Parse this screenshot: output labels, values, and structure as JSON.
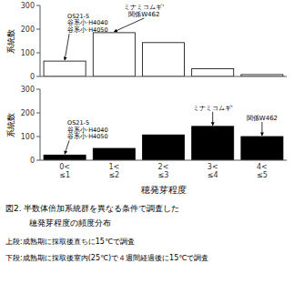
{
  "chart_data": [
    {
      "type": "bar",
      "categories": [
        null,
        null,
        null,
        null,
        null
      ],
      "values": [
        65,
        185,
        143,
        33,
        8
      ],
      "color": "white",
      "ylabel": "系統数",
      "ylim": [
        0,
        300
      ],
      "yticks": [
        0,
        100,
        200,
        300
      ],
      "grid": false,
      "tick_labels": "y",
      "annotations": [
        {
          "text": "ミナミコムギ'\n関係W462",
          "x": 1,
          "y": 185
        },
        {
          "text": "OS21-5\n谷系小·H4040\n谷系小·H4050",
          "x": 0,
          "y": 65
        }
      ]
    },
    {
      "type": "bar",
      "categories": [
        "0<\n≤1",
        "1<\n≤2",
        "2<\n≤3",
        "3<\n≤4",
        "4<\n≤5"
      ],
      "values": [
        22,
        50,
        107,
        143,
        100
      ],
      "color": "black",
      "xlabel": "穂発芽程度",
      "ylabel": "系統数",
      "ylim": [
        0,
        300
      ],
      "yticks": [
        0,
        100,
        200,
        300
      ],
      "grid": false,
      "annotations": [
        {
          "text": "ミナミコムギ'",
          "x": 3,
          "y": 143
        },
        {
          "text": "関係W462",
          "x": 4,
          "y": 100
        },
        {
          "text": "OS21-5\n谷系小·H4040\n谷系小·H4050",
          "x": 0,
          "y": 22
        }
      ]
    }
  ],
  "caption": [
    "図2. 半数体倍加系統群を異なる条件で調査した",
    "穂発芽程度の頻度分布",
    "上段:成熟期に採取後直ちに15℃で調査",
    "下段:成熟期に採取後室内(25℃)で４週間経過後に15℃で調査"
  ]
}
